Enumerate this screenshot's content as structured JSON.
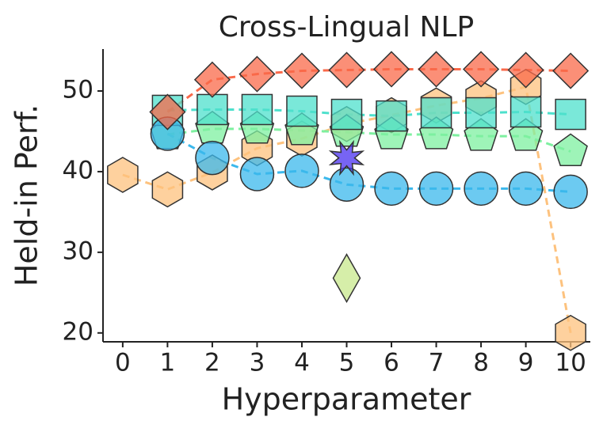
{
  "chart_data": {
    "type": "scatter",
    "title": "Cross-Lingual NLP",
    "x_label": "Hyperparameter",
    "y_label": "Held-in Perf.",
    "xlim": [
      -0.44,
      10.44
    ],
    "xticks": [
      0,
      1,
      2,
      3,
      4,
      5,
      6,
      7,
      8,
      9,
      10
    ],
    "ylim": [
      18.9,
      55.2
    ],
    "yticks": [
      20,
      30,
      40,
      50
    ],
    "series": [
      {
        "color": "#fdc27e",
        "marker": "hexagon",
        "line": true,
        "x": [
          0,
          1,
          2,
          3,
          4,
          5,
          6,
          7,
          8,
          9,
          10
        ],
        "values": [
          39.6,
          37.8,
          39.9,
          42.9,
          44.1,
          45.9,
          47.0,
          48.2,
          49.1,
          50.5,
          20.0
        ]
      },
      {
        "color": "#7ef0a0",
        "marker": "pentagon",
        "line": true,
        "x": [
          1,
          2,
          3,
          4,
          5,
          6,
          7,
          8,
          9,
          10
        ],
        "values": [
          44.6,
          45.3,
          45.3,
          45.1,
          44.9,
          44.6,
          44.6,
          44.4,
          44.4,
          42.5
        ]
      },
      {
        "color": "#4de0cc",
        "marker": "square",
        "line": true,
        "x": [
          1,
          2,
          3,
          4,
          5,
          6,
          7,
          8,
          9,
          10
        ],
        "values": [
          47.6,
          47.7,
          47.7,
          47.5,
          47.1,
          46.9,
          47.3,
          47.3,
          47.4,
          47.1
        ]
      },
      {
        "color": "#3bb8ec",
        "marker": "circle",
        "line": true,
        "x": [
          1,
          2,
          3,
          4,
          5,
          6,
          7,
          8,
          9,
          10
        ],
        "values": [
          44.7,
          41.7,
          39.7,
          40.1,
          38.4,
          37.9,
          37.9,
          37.9,
          37.9,
          37.5
        ]
      },
      {
        "color": "#f9694a",
        "marker": "diamond",
        "line": true,
        "x": [
          1,
          2,
          3,
          4,
          5,
          6,
          7,
          8,
          9,
          10
        ],
        "values": [
          47.4,
          51.4,
          52.1,
          52.5,
          52.6,
          52.7,
          52.7,
          52.7,
          52.6,
          52.5
        ]
      },
      {
        "color": "#c8e88c",
        "marker": "thin-diamond",
        "line": false,
        "x": [
          5
        ],
        "values": [
          26.8
        ]
      },
      {
        "color": "#4a30f0",
        "marker": "star",
        "line": false,
        "x": [
          5
        ],
        "values": [
          41.7
        ]
      }
    ]
  }
}
